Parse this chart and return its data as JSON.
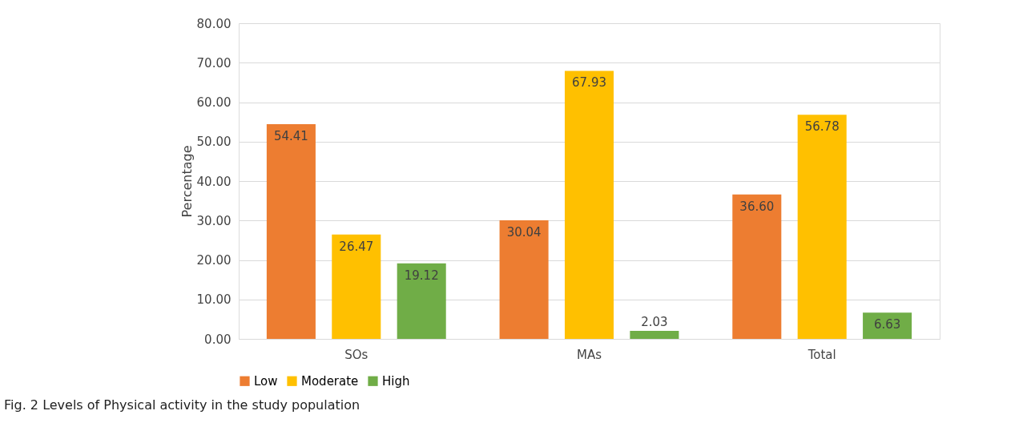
{
  "chart_data": {
    "type": "bar",
    "title": "Fig. 2 Levels of Physical activity in the study population",
    "ylabel": "Percentage",
    "categories": [
      "SOs",
      "MAs",
      "Total"
    ],
    "series": [
      {
        "name": "Low",
        "color": "#ed7d31",
        "values": [
          54.41,
          30.04,
          36.6
        ],
        "value_labels": [
          "54.41",
          "30.04",
          "36.60"
        ]
      },
      {
        "name": "Moderate",
        "color": "#ffc000",
        "values": [
          26.47,
          67.93,
          56.78
        ],
        "value_labels": [
          "26.47",
          "67.93",
          "56.78"
        ]
      },
      {
        "name": "High",
        "color": "#70ad47",
        "values": [
          19.12,
          2.03,
          6.63
        ],
        "value_labels": [
          "19.12",
          "2.03",
          "6.63"
        ]
      }
    ],
    "ylim": [
      0,
      80
    ],
    "yticks": [
      {
        "value": 0,
        "label": "0.00"
      },
      {
        "value": 10,
        "label": "10.00"
      },
      {
        "value": 20,
        "label": "20.00"
      },
      {
        "value": 30,
        "label": "30.00"
      },
      {
        "value": 40,
        "label": "40.00"
      },
      {
        "value": 50,
        "label": "50.00"
      },
      {
        "value": 60,
        "label": "60.00"
      },
      {
        "value": 70,
        "label": "70.00"
      },
      {
        "value": 80,
        "label": "80.00"
      }
    ],
    "grid": "y",
    "legend": "bottom"
  }
}
